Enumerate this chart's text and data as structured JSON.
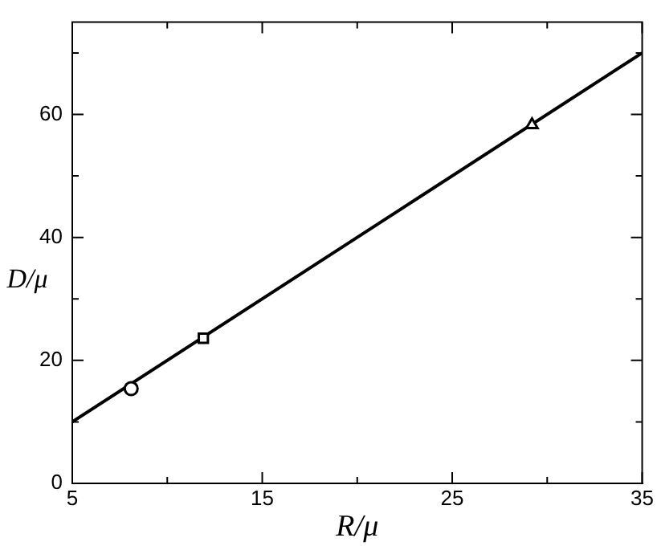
{
  "chart_data": {
    "type": "line",
    "xlabel": "R/μ",
    "ylabel": "D/μ",
    "xlim": [
      5,
      35
    ],
    "ylim": [
      0,
      75
    ],
    "xticks": [
      5,
      {
        "value": 10,
        "label": null
      },
      15,
      {
        "value": 20,
        "label": null
      },
      25,
      {
        "value": 30,
        "label": null
      },
      35
    ],
    "yticks": [
      0,
      {
        "value": 10,
        "label": null
      },
      20,
      {
        "value": 30,
        "label": null
      },
      40,
      {
        "value": 50,
        "label": null
      },
      60,
      {
        "value": 70,
        "label": null
      }
    ],
    "grid": false,
    "legend": false,
    "line_style": "solid",
    "marker": "none",
    "series": [
      {
        "color": "#000000",
        "x": [
          5,
          20,
          35
        ],
        "values": [
          10,
          40,
          70
        ]
      },
      {
        "type": "scatter",
        "marker": "circle",
        "color": "#000000",
        "x": [
          8.1
        ],
        "values": [
          15.4
        ]
      },
      {
        "type": "scatter",
        "marker": "square",
        "color": "#000000",
        "x": [
          11.9
        ],
        "values": [
          23.6
        ]
      },
      {
        "type": "scatter",
        "marker": "triangle",
        "color": "#000000",
        "x": [
          29.2
        ],
        "values": [
          58.3
        ]
      }
    ]
  }
}
